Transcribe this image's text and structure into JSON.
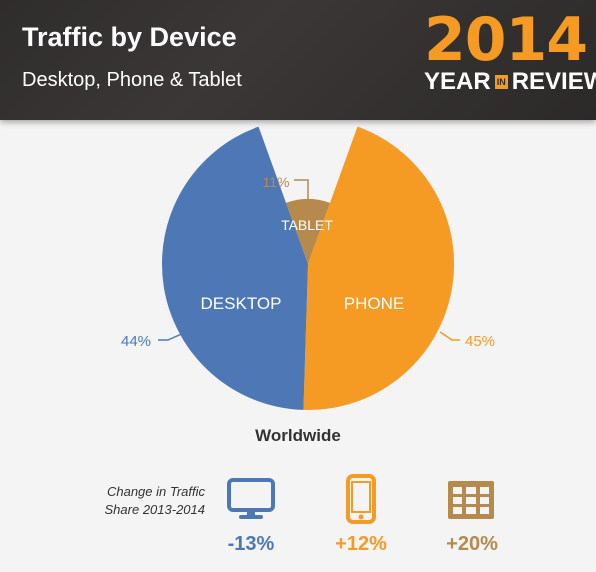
{
  "header": {
    "title": "Traffic by Device",
    "subtitle": "Desktop, Phone & Tablet",
    "brand_year": "2014",
    "brand_left": "YEAR",
    "brand_in": "IN",
    "brand_right": "REVIEW"
  },
  "colors": {
    "desktop": "#4d78b5",
    "phone": "#f59a22",
    "tablet": "#b58a4c",
    "header_bg": "#2f2c2c",
    "brand": "#f59a22"
  },
  "chart_data": {
    "type": "pie",
    "title": "",
    "xlabel": "Worldwide",
    "slices": [
      {
        "label": "DESKTOP",
        "value": 44,
        "value_label": "44%"
      },
      {
        "label": "PHONE",
        "value": 45,
        "value_label": "45%"
      },
      {
        "label": "TABLET",
        "value": 11,
        "value_label": "11%"
      }
    ]
  },
  "change": {
    "label_line1": "Change in Traffic",
    "label_line2": "Share 2013-2014",
    "items": [
      {
        "device": "desktop",
        "icon": "monitor-icon",
        "value": "-13%"
      },
      {
        "device": "phone",
        "icon": "phone-icon",
        "value": "+12%"
      },
      {
        "device": "tablet",
        "icon": "tablet-icon",
        "value": "+20%"
      }
    ]
  }
}
